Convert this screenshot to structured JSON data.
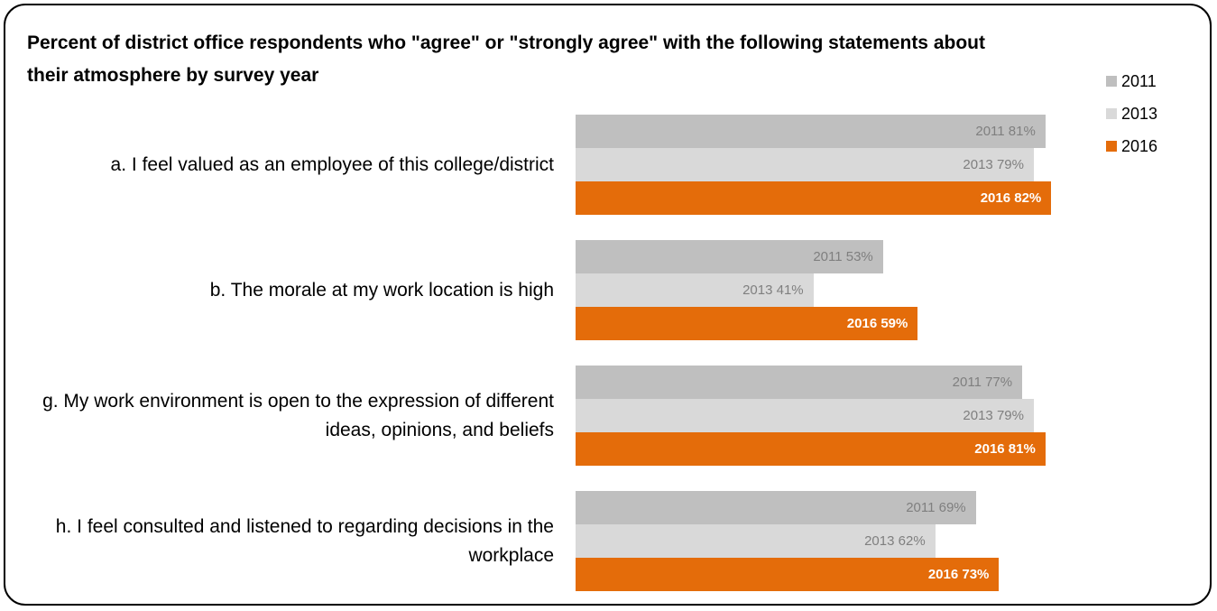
{
  "chart_data": {
    "type": "bar",
    "orientation": "horizontal",
    "title": "Percent of district office respondents who \"agree\" or \"strongly agree\" with the following statements about their atmosphere by survey year",
    "categories": [
      "a. I feel valued as an employee of this college/district",
      "b. The morale at my work location is high",
      "g. My work environment is open to the expression of different ideas, opinions, and beliefs",
      "h. I feel consulted and listened to regarding decisions in the workplace"
    ],
    "series": [
      {
        "name": "2011",
        "color": "#bfbfbf",
        "label_color": "#7f7f7f",
        "bold": false,
        "values": [
          81,
          53,
          77,
          69
        ]
      },
      {
        "name": "2013",
        "color": "#d9d9d9",
        "label_color": "#7f7f7f",
        "bold": false,
        "values": [
          79,
          41,
          79,
          62
        ]
      },
      {
        "name": "2016",
        "color": "#e46c0a",
        "label_color": "#ffffff",
        "bold": true,
        "values": [
          82,
          59,
          81,
          73
        ]
      }
    ],
    "xlim": [
      0,
      100
    ],
    "grid": false,
    "legend_position": "top-right"
  }
}
